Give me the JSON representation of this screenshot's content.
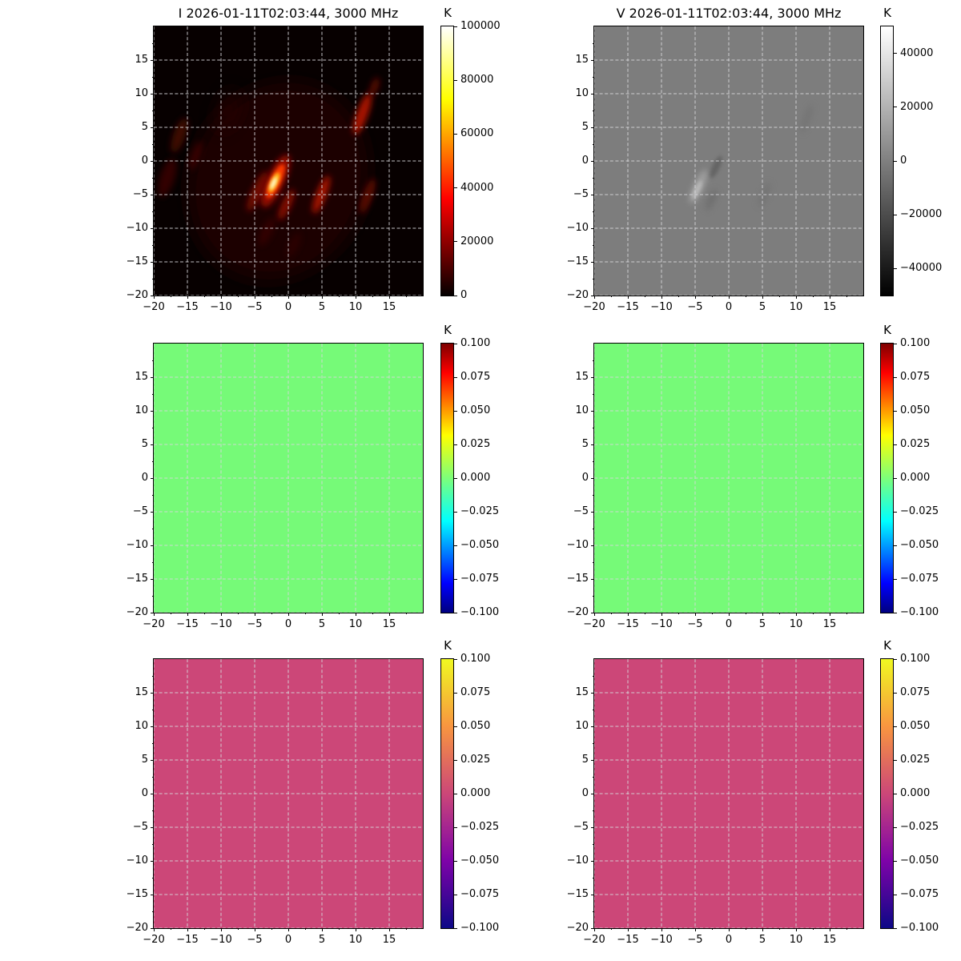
{
  "figure": {
    "background": "#ffffff",
    "grid_color": "#d6d6da",
    "axis_color": "#000000"
  },
  "chart_data": [
    {
      "type": "heatmap",
      "id": "stokes-i-map",
      "title": "I 2026-01-11T02:03:44, 3000 MHz",
      "colormap": "hot",
      "background_color": "#070000",
      "x_range": [
        -20,
        20
      ],
      "y_range": [
        -20,
        20
      ],
      "x_ticks": [
        -20,
        -15,
        -10,
        -5,
        0,
        5,
        10,
        15
      ],
      "x_tick_labels": [
        "−20",
        "−15",
        "−10",
        "−5",
        "0",
        "5",
        "10",
        "15"
      ],
      "y_ticks": [
        15,
        10,
        5,
        0,
        -5,
        -10,
        -15,
        -20
      ],
      "y_tick_labels": [
        "15",
        "10",
        "5",
        "0",
        "−5",
        "−10",
        "−15",
        "−20"
      ],
      "minor_tick_step": 2.5,
      "grid": true,
      "colorbar": {
        "label": "K",
        "range": [
          0,
          100000
        ],
        "ticks": [
          100000,
          80000,
          60000,
          40000,
          20000,
          0
        ],
        "tick_labels": [
          "100000",
          "80000",
          "60000",
          "40000",
          "20000",
          "0"
        ],
        "gradient_stops": [
          [
            "0%",
            "#030000"
          ],
          [
            "36%",
            "#ff0000"
          ],
          [
            "73%",
            "#ffff00"
          ],
          [
            "100%",
            "#ffffff"
          ]
        ]
      },
      "features": [
        {
          "x": -1.5,
          "y": -3,
          "length": 30,
          "width": 26,
          "angle": 25,
          "color": "#1c0200",
          "opacity": 1,
          "blur": "big"
        },
        {
          "x": -9,
          "y": 7.5,
          "length": 6,
          "width": 2.5,
          "angle": 22,
          "color": "#2c0400",
          "opacity": 0.8,
          "blur": "big"
        },
        {
          "x": -16.2,
          "y": 3.8,
          "length": 5.5,
          "width": 1.8,
          "angle": 20,
          "color": "#4a0700",
          "opacity": 0.85,
          "blur": "med"
        },
        {
          "x": -13.8,
          "y": 0.8,
          "length": 4.5,
          "width": 1.4,
          "angle": 20,
          "color": "#400600",
          "opacity": 0.8,
          "blur": "med"
        },
        {
          "x": -18,
          "y": -2.5,
          "length": 6,
          "width": 2.2,
          "angle": 18,
          "color": "#3c0600",
          "opacity": 0.8,
          "blur": "med"
        },
        {
          "x": -3.2,
          "y": -10.5,
          "length": 4.5,
          "width": 1.6,
          "angle": 25,
          "color": "#380500",
          "opacity": 0.8,
          "blur": "med"
        },
        {
          "x": 0.8,
          "y": -12.5,
          "length": 4,
          "width": 1.5,
          "angle": 25,
          "color": "#300400",
          "opacity": 0.7,
          "blur": "med"
        },
        {
          "x": 11.8,
          "y": -5.2,
          "length": 5.5,
          "width": 1.4,
          "angle": 20,
          "color": "#700b00",
          "opacity": 0.8,
          "blur": "med"
        },
        {
          "x": 12.8,
          "y": 11,
          "length": 3,
          "width": 1.1,
          "angle": 20,
          "color": "#6e0a00",
          "opacity": 0.8,
          "blur": "med"
        },
        {
          "x": 11,
          "y": 7,
          "length": 6.5,
          "width": 1.7,
          "angle": 20,
          "color": "#bb1300",
          "opacity": 0.9,
          "blur": "med"
        },
        {
          "x": 4.9,
          "y": -5,
          "length": 6,
          "width": 1.5,
          "angle": 22,
          "color": "#b31200",
          "opacity": 0.9,
          "blur": "med"
        },
        {
          "x": -0.3,
          "y": -6.5,
          "length": 5,
          "width": 1.4,
          "angle": 25,
          "color": "#960e00",
          "opacity": 0.85,
          "blur": "med"
        },
        {
          "x": -4.6,
          "y": -4.5,
          "length": 6.5,
          "width": 1.6,
          "angle": 25,
          "color": "#7c0c00",
          "opacity": 0.9,
          "blur": "med"
        },
        {
          "x": -1.9,
          "y": -3,
          "length": 8.5,
          "width": 2.6,
          "angle": 25,
          "color": "#a00e00",
          "opacity": 0.95,
          "blur": "med"
        },
        {
          "x": -1.9,
          "y": -3,
          "length": 5.5,
          "width": 1.6,
          "angle": 25,
          "color": "#ff3c00",
          "opacity": 0.95,
          "blur": "soft"
        },
        {
          "x": -2.1,
          "y": -3.2,
          "length": 3.2,
          "width": 1.0,
          "angle": 25,
          "color": "#ffc81e",
          "opacity": 1,
          "blur": "soft"
        },
        {
          "x": -2.2,
          "y": -3.3,
          "length": 1.9,
          "width": 0.55,
          "angle": 25,
          "color": "#fffce6",
          "opacity": 1,
          "blur": "soft"
        }
      ]
    },
    {
      "type": "heatmap",
      "id": "stokes-v-map",
      "title": "V 2026-01-11T02:03:44, 3000 MHz",
      "colormap": "gray",
      "background_color": "#7d7d7d",
      "x_range": [
        -20,
        20
      ],
      "y_range": [
        -20,
        20
      ],
      "x_ticks": [
        -20,
        -15,
        -10,
        -5,
        0,
        5,
        10,
        15
      ],
      "x_tick_labels": [
        "−20",
        "−15",
        "−10",
        "−5",
        "0",
        "5",
        "10",
        "15"
      ],
      "y_ticks": [
        15,
        10,
        5,
        0,
        -5,
        -10,
        -15,
        -20
      ],
      "y_tick_labels": [
        "15",
        "10",
        "5",
        "0",
        "−5",
        "−10",
        "−15",
        "−20"
      ],
      "minor_tick_step": 2.5,
      "grid": true,
      "colorbar": {
        "label": "K",
        "range": [
          -50000,
          50000
        ],
        "ticks": [
          40000,
          20000,
          0,
          -20000,
          -40000
        ],
        "tick_labels": [
          "40000",
          "20000",
          "0",
          "−20000",
          "−40000"
        ],
        "gradient_stops": [
          [
            "0%",
            "#000000"
          ],
          [
            "100%",
            "#ffffff"
          ]
        ]
      },
      "features": [
        {
          "x": -4.5,
          "y": -3.8,
          "length": 5.5,
          "width": 1.4,
          "angle": 25,
          "color": "#a9a9a9",
          "opacity": 0.85,
          "blur": "med"
        },
        {
          "x": -4.7,
          "y": -4.3,
          "length": 3,
          "width": 0.8,
          "angle": 25,
          "color": "#c0c0c0",
          "opacity": 0.8,
          "blur": "soft"
        },
        {
          "x": -1.9,
          "y": -0.9,
          "length": 3.6,
          "width": 1.1,
          "angle": 25,
          "color": "#5e5e5e",
          "opacity": 0.8,
          "blur": "soft"
        },
        {
          "x": -2.6,
          "y": -5.8,
          "length": 3.4,
          "width": 1.0,
          "angle": 25,
          "color": "#676767",
          "opacity": 0.7,
          "blur": "med"
        },
        {
          "x": 5.3,
          "y": -5,
          "length": 4,
          "width": 1.0,
          "angle": 22,
          "color": "#6d6d6d",
          "opacity": 0.6,
          "blur": "med"
        },
        {
          "x": 11.6,
          "y": 6.3,
          "length": 4.5,
          "width": 1.0,
          "angle": 20,
          "color": "#6d6d6d",
          "opacity": 0.55,
          "blur": "med"
        }
      ]
    },
    {
      "type": "heatmap",
      "id": "residual-i-left",
      "title": "",
      "colormap": "jet",
      "background_color": "#76fa78",
      "uniform_value": 0.0,
      "x_range": [
        -20,
        20
      ],
      "y_range": [
        -20,
        20
      ],
      "x_ticks": [
        -20,
        -15,
        -10,
        -5,
        0,
        5,
        10,
        15
      ],
      "x_tick_labels": [
        "−20",
        "−15",
        "−10",
        "−5",
        "0",
        "5",
        "10",
        "15"
      ],
      "y_ticks": [
        15,
        10,
        5,
        0,
        -5,
        -10,
        -15,
        -20
      ],
      "y_tick_labels": [
        "15",
        "10",
        "5",
        "0",
        "−5",
        "−10",
        "−15",
        "−20"
      ],
      "minor_tick_step": 2.5,
      "grid": true,
      "colorbar": {
        "label": "K",
        "range": [
          -0.1,
          0.1
        ],
        "ticks": [
          0.1,
          0.075,
          0.05,
          0.025,
          0.0,
          -0.025,
          -0.05,
          -0.075,
          -0.1
        ],
        "tick_labels": [
          "0.100",
          "0.075",
          "0.050",
          "0.025",
          "0.000",
          "−0.025",
          "−0.050",
          "−0.075",
          "−0.100"
        ],
        "gradient_stops": [
          [
            "0%",
            "#00007f"
          ],
          [
            "11%",
            "#0000ff"
          ],
          [
            "34%",
            "#00ffff"
          ],
          [
            "50%",
            "#7dff7a"
          ],
          [
            "66%",
            "#ffff00"
          ],
          [
            "89%",
            "#ff0000"
          ],
          [
            "100%",
            "#7f0000"
          ]
        ]
      },
      "features": []
    },
    {
      "type": "heatmap",
      "id": "residual-v-right",
      "title": "",
      "colormap": "jet",
      "background_color": "#76fa78",
      "uniform_value": 0.0,
      "x_range": [
        -20,
        20
      ],
      "y_range": [
        -20,
        20
      ],
      "x_ticks": [
        -20,
        -15,
        -10,
        -5,
        0,
        5,
        10,
        15
      ],
      "x_tick_labels": [
        "−20",
        "−15",
        "−10",
        "−5",
        "0",
        "5",
        "10",
        "15"
      ],
      "y_ticks": [
        15,
        10,
        5,
        0,
        -5,
        -10,
        -15,
        -20
      ],
      "y_tick_labels": [
        "15",
        "10",
        "5",
        "0",
        "−5",
        "−10",
        "−15",
        "−20"
      ],
      "minor_tick_step": 2.5,
      "grid": true,
      "colorbar": {
        "label": "K",
        "range": [
          -0.1,
          0.1
        ],
        "ticks": [
          0.1,
          0.075,
          0.05,
          0.025,
          0.0,
          -0.025,
          -0.05,
          -0.075,
          -0.1
        ],
        "tick_labels": [
          "0.100",
          "0.075",
          "0.050",
          "0.025",
          "0.000",
          "−0.025",
          "−0.050",
          "−0.075",
          "−0.100"
        ],
        "gradient_stops": [
          [
            "0%",
            "#00007f"
          ],
          [
            "11%",
            "#0000ff"
          ],
          [
            "34%",
            "#00ffff"
          ],
          [
            "50%",
            "#7dff7a"
          ],
          [
            "66%",
            "#ffff00"
          ],
          [
            "89%",
            "#ff0000"
          ],
          [
            "100%",
            "#7f0000"
          ]
        ]
      },
      "features": []
    },
    {
      "type": "heatmap",
      "id": "model-i-left",
      "title": "",
      "colormap": "plasma",
      "background_color": "#cc4778",
      "uniform_value": 0.0,
      "x_range": [
        -20,
        20
      ],
      "y_range": [
        -20,
        20
      ],
      "x_ticks": [
        -20,
        -15,
        -10,
        -5,
        0,
        5,
        10,
        15
      ],
      "x_tick_labels": [
        "−20",
        "−15",
        "−10",
        "−5",
        "0",
        "5",
        "10",
        "15"
      ],
      "y_ticks": [
        15,
        10,
        5,
        0,
        -5,
        -10,
        -15,
        -20
      ],
      "y_tick_labels": [
        "15",
        "10",
        "5",
        "0",
        "−5",
        "−10",
        "−15",
        "−20"
      ],
      "minor_tick_step": 2.5,
      "grid": true,
      "colorbar": {
        "label": "K",
        "range": [
          -0.1,
          0.1
        ],
        "ticks": [
          0.1,
          0.075,
          0.05,
          0.025,
          0.0,
          -0.025,
          -0.05,
          -0.075,
          -0.1
        ],
        "tick_labels": [
          "0.100",
          "0.075",
          "0.050",
          "0.025",
          "0.000",
          "−0.025",
          "−0.050",
          "−0.075",
          "−0.100"
        ],
        "gradient_stops": [
          [
            "0%",
            "#0d0887"
          ],
          [
            "25%",
            "#7e03a8"
          ],
          [
            "50%",
            "#cc4778"
          ],
          [
            "75%",
            "#f89540"
          ],
          [
            "100%",
            "#f0f921"
          ]
        ]
      },
      "features": []
    },
    {
      "type": "heatmap",
      "id": "model-v-right",
      "title": "",
      "colormap": "plasma",
      "background_color": "#cc4778",
      "uniform_value": 0.0,
      "x_range": [
        -20,
        20
      ],
      "y_range": [
        -20,
        20
      ],
      "x_ticks": [
        -20,
        -15,
        -10,
        -5,
        0,
        5,
        10,
        15
      ],
      "x_tick_labels": [
        "−20",
        "−15",
        "−10",
        "−5",
        "0",
        "5",
        "10",
        "15"
      ],
      "y_ticks": [
        15,
        10,
        5,
        0,
        -5,
        -10,
        -15,
        -20
      ],
      "y_tick_labels": [
        "15",
        "10",
        "5",
        "0",
        "−5",
        "−10",
        "−15",
        "−20"
      ],
      "minor_tick_step": 2.5,
      "grid": true,
      "colorbar": {
        "label": "K",
        "range": [
          -0.1,
          0.1
        ],
        "ticks": [
          0.1,
          0.075,
          0.05,
          0.025,
          0.0,
          -0.025,
          -0.05,
          -0.075,
          -0.1
        ],
        "tick_labels": [
          "0.100",
          "0.075",
          "0.050",
          "0.025",
          "0.000",
          "−0.025",
          "−0.050",
          "−0.075",
          "−0.100"
        ],
        "gradient_stops": [
          [
            "0%",
            "#0d0887"
          ],
          [
            "25%",
            "#7e03a8"
          ],
          [
            "50%",
            "#cc4778"
          ],
          [
            "75%",
            "#f89540"
          ],
          [
            "100%",
            "#f0f921"
          ]
        ]
      },
      "features": []
    }
  ]
}
